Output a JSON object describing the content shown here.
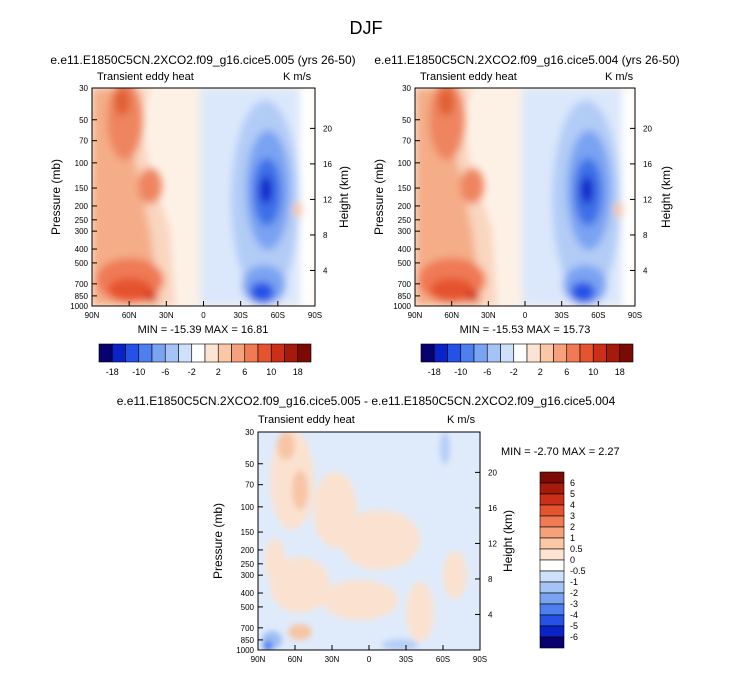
{
  "figure_title": "DJF",
  "colors": {
    "top_scale": [
      "#08006e",
      "#0a23c8",
      "#2551e6",
      "#4d7fee",
      "#7aa3f2",
      "#a6c3f6",
      "#cfe0fb",
      "#ffffff",
      "#fde4d2",
      "#fbc7a7",
      "#f6a07c",
      "#ef7a54",
      "#e5532f",
      "#cc2f18",
      "#a51a0a",
      "#7a0a03"
    ],
    "bottom_scale": [
      "#08006e",
      "#0a23c8",
      "#2551e6",
      "#4d7fee",
      "#7aa3f2",
      "#a6c3f6",
      "#cfe0fb",
      "#ffffff",
      "#fde4d2",
      "#fbc7a7",
      "#f6a07c",
      "#ef7a54",
      "#e5532f",
      "#cc2f18",
      "#a51a0a",
      "#7a0a03"
    ]
  },
  "chart_data": [
    {
      "type": "contour",
      "title": "e.e11.E1850C5CN.2XCO2.f09_g16.cice5.005 (yrs 26-50)",
      "subtitle_left": "Transient eddy heat",
      "units": "K m/s",
      "xlabel": "",
      "ylabel": "Pressure (mb)",
      "ylabel_right": "Height (km)",
      "x_ticks": [
        "90N",
        "60N",
        "30N",
        "0",
        "30S",
        "60S",
        "90S"
      ],
      "x_range": [
        90,
        -90
      ],
      "y_ticks": [
        "30",
        "50",
        "70",
        "100",
        "150",
        "200",
        "250",
        "300",
        "400",
        "500",
        "700",
        "850",
        "1000"
      ],
      "y_ticks_right": [
        "20",
        "16",
        "12",
        "8",
        "4"
      ],
      "stats": "MIN = -15.39  MAX =  16.81",
      "colorbar_labels": [
        "-18",
        "-10",
        "-6",
        "-2",
        "2",
        "6",
        "10",
        "18"
      ],
      "features": [
        {
          "sign": "positive",
          "peak": 16.81,
          "lat": 70,
          "pressure": 40
        },
        {
          "sign": "positive",
          "peak": 14,
          "lat": 48,
          "pressure": 150
        },
        {
          "sign": "positive",
          "peak": 16,
          "lat": 60,
          "pressure": 850
        },
        {
          "sign": "negative",
          "peak": -15.39,
          "lat": -50,
          "pressure": 180
        },
        {
          "sign": "negative",
          "peak": -14,
          "lat": -48,
          "pressure": 850
        }
      ]
    },
    {
      "type": "contour",
      "title": "e.e11.E1850C5CN.2XCO2.f09_g16.cice5.004 (yrs 26-50)",
      "subtitle_left": "Transient eddy heat",
      "units": "K m/s",
      "xlabel": "",
      "ylabel": "Pressure (mb)",
      "ylabel_right": "Height (km)",
      "x_ticks": [
        "90N",
        "60N",
        "30N",
        "0",
        "30S",
        "60S",
        "90S"
      ],
      "x_range": [
        90,
        -90
      ],
      "y_ticks": [
        "30",
        "50",
        "70",
        "100",
        "150",
        "200",
        "250",
        "300",
        "400",
        "500",
        "700",
        "850",
        "1000"
      ],
      "y_ticks_right": [
        "20",
        "16",
        "12",
        "8",
        "4"
      ],
      "stats": "MIN = -15.53  MAX =  15.73",
      "colorbar_labels": [
        "-18",
        "-10",
        "-6",
        "-2",
        "2",
        "6",
        "10",
        "18"
      ],
      "features": [
        {
          "sign": "positive",
          "peak": 15.73,
          "lat": 70,
          "pressure": 40
        },
        {
          "sign": "positive",
          "peak": 14,
          "lat": 48,
          "pressure": 150
        },
        {
          "sign": "positive",
          "peak": 15,
          "lat": 60,
          "pressure": 850
        },
        {
          "sign": "negative",
          "peak": -15.53,
          "lat": -50,
          "pressure": 180
        },
        {
          "sign": "negative",
          "peak": -14,
          "lat": -48,
          "pressure": 850
        }
      ]
    },
    {
      "type": "contour",
      "title": "e.e11.E1850C5CN.2XCO2.f09_g16.cice5.005 - e.e11.E1850C5CN.2XCO2.f09_g16.cice5.004",
      "subtitle_left": "Transient eddy heat",
      "units": "K m/s",
      "xlabel": "",
      "ylabel": "Pressure (mb)",
      "ylabel_right": "Height (km)",
      "x_ticks": [
        "90N",
        "60N",
        "30N",
        "0",
        "30S",
        "60S",
        "90S"
      ],
      "x_range": [
        90,
        -90
      ],
      "y_ticks": [
        "30",
        "50",
        "70",
        "100",
        "150",
        "200",
        "250",
        "300",
        "400",
        "500",
        "700",
        "850",
        "1000"
      ],
      "y_ticks_right": [
        "20",
        "16",
        "12",
        "8",
        "4"
      ],
      "stats": "MIN =  -2.70  MAX =   2.27",
      "colorbar_labels": [
        "6",
        "5",
        "4",
        "3",
        "2",
        "1",
        "0.5",
        "0",
        "-0.5",
        "-1",
        "-2",
        "-3",
        "-4",
        "-5",
        "-6"
      ],
      "features": [
        {
          "sign": "positive",
          "peak": 2.27,
          "lat": 55,
          "pressure": 60
        },
        {
          "sign": "negative",
          "peak": -2.7,
          "lat": 75,
          "pressure": 950
        }
      ]
    }
  ]
}
